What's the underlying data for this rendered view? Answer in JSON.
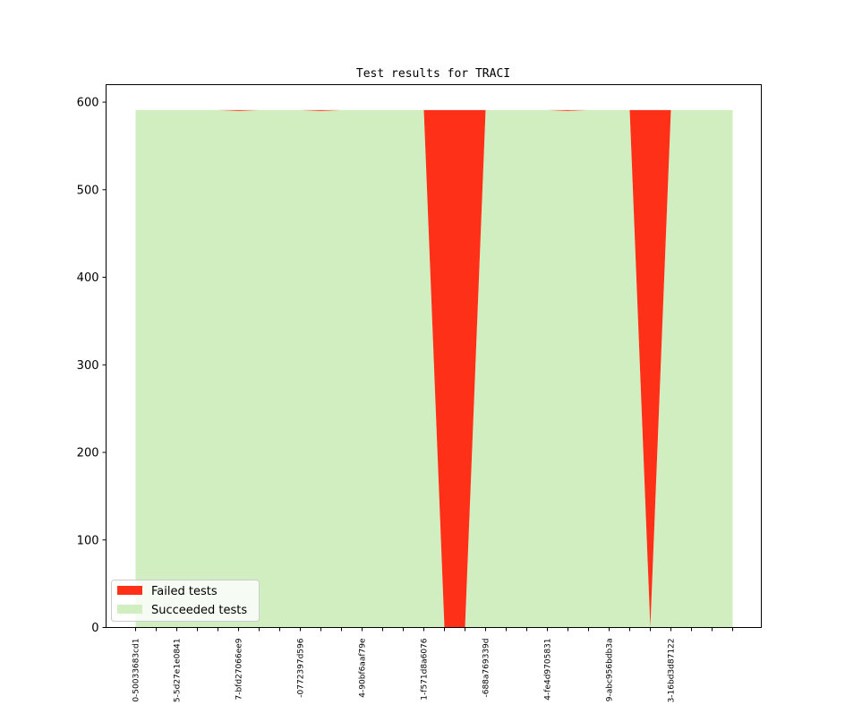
{
  "chart_data": {
    "type": "area",
    "title": "Test results for TRACI",
    "xlabel": "",
    "ylabel": "",
    "ylim": [
      0,
      620
    ],
    "yticks": [
      0,
      100,
      200,
      300,
      400,
      500,
      600
    ],
    "grid": false,
    "legend_placement": "lower-left",
    "x_labels": [
      "0-50033683cd1",
      "",
      "5-5d27e1e0841",
      "",
      "",
      "7-bfd27066ee9",
      "",
      "",
      "-0772397d596",
      "",
      "",
      "4-90bf6aaf79e",
      "",
      "",
      "1-f571d8a6076",
      "",
      "",
      "-688a769339d",
      "",
      "",
      "4-fe4d9705831",
      "",
      "",
      "9-abc956bdb3a",
      "",
      "",
      "3-16bd3d87122",
      "",
      "",
      ""
    ],
    "series": [
      {
        "name": "Succeeded tests",
        "color": "#d0eec0",
        "values": [
          591,
          591,
          591,
          591,
          591,
          590,
          591,
          591,
          591,
          590,
          591,
          591,
          591,
          591,
          591,
          0,
          0,
          591,
          591,
          591,
          591,
          590,
          591,
          591,
          591,
          0,
          591,
          591,
          591,
          591
        ]
      },
      {
        "name": "Failed tests",
        "color": "#ff3018",
        "values": [
          0,
          0,
          0,
          0,
          0,
          1,
          0,
          0,
          0,
          1,
          0,
          0,
          0,
          0,
          0,
          591,
          591,
          0,
          0,
          0,
          0,
          1,
          0,
          0,
          0,
          591,
          0,
          0,
          0,
          0
        ]
      }
    ]
  }
}
